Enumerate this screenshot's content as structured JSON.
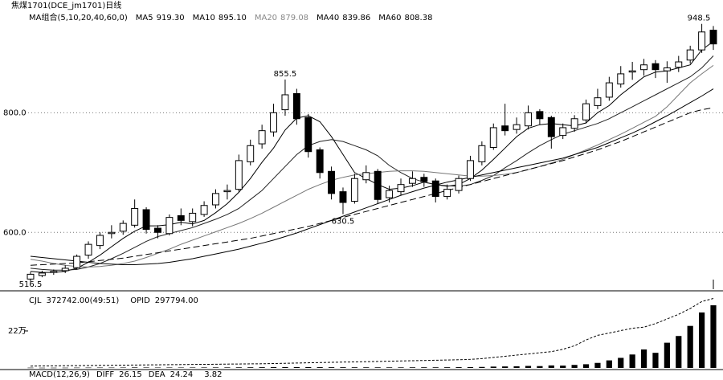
{
  "title": "焦煤1701(DCE_jm1701)日线",
  "chart_data": [
    {
      "type": "candlestick",
      "legend_title": "MA组合(5,10,20,40,60,0)",
      "ylim": [
        505,
        975
      ],
      "yticks": [
        {
          "value": 800,
          "label": "800.0"
        },
        {
          "value": 600,
          "label": "600.0"
        }
      ],
      "grid": true,
      "up_color": "#ffffff",
      "down_color": "#000000",
      "open": [
        522,
        528,
        533,
        536,
        541,
        562,
        578,
        598,
        602,
        612,
        638,
        607,
        598,
        628,
        618,
        630,
        646,
        668,
        672,
        718,
        748,
        768,
        805,
        832,
        792,
        738,
        702,
        668,
        652,
        688,
        702,
        658,
        668,
        682,
        692,
        686,
        660,
        670,
        690,
        718,
        742,
        778,
        772,
        778,
        802,
        792,
        762,
        774,
        788,
        812,
        826,
        848,
        868,
        872,
        882,
        870,
        876,
        888,
        905,
        938
      ],
      "high": [
        534,
        536,
        538,
        545,
        563,
        585,
        600,
        612,
        620,
        655,
        642,
        612,
        630,
        640,
        640,
        652,
        672,
        680,
        730,
        755,
        780,
        815,
        855.5,
        840,
        798,
        742,
        710,
        675,
        698,
        712,
        706,
        678,
        690,
        702,
        698,
        690,
        680,
        695,
        728,
        752,
        782,
        815,
        792,
        812,
        806,
        795,
        782,
        796,
        822,
        840,
        860,
        878,
        885,
        890,
        888,
        886,
        895,
        912,
        948.5,
        945
      ],
      "low": [
        516.5,
        525,
        529,
        532,
        538,
        556,
        572,
        590,
        596,
        608,
        598,
        590,
        595,
        612,
        610,
        626,
        640,
        655,
        668,
        712,
        740,
        760,
        795,
        780,
        725,
        690,
        655,
        630.5,
        648,
        682,
        648,
        650,
        662,
        676,
        676,
        650,
        655,
        665,
        686,
        712,
        738,
        762,
        765,
        772,
        780,
        740,
        756,
        768,
        782,
        806,
        820,
        842,
        855,
        862,
        858,
        850,
        868,
        882,
        900,
        905
      ],
      "close": [
        530,
        532,
        535,
        540,
        560,
        580,
        595,
        600,
        615,
        640,
        605,
        600,
        625,
        620,
        632,
        645,
        665,
        670,
        720,
        745,
        770,
        800,
        830,
        790,
        735,
        700,
        665,
        650,
        690,
        700,
        655,
        670,
        680,
        690,
        685,
        660,
        672,
        690,
        720,
        745,
        775,
        770,
        780,
        800,
        790,
        760,
        775,
        790,
        815,
        825,
        850,
        865,
        870,
        880,
        872,
        875,
        885,
        905,
        935,
        915
      ],
      "annotations": [
        855.5,
        630.5,
        948.5,
        516.5
      ],
      "series": [
        {
          "name": "MA5",
          "color": "#000000",
          "legend_value": {
            "value": 919.3,
            "label": "919.30"
          },
          "values": [
            535,
            533,
            533,
            535,
            540,
            550,
            562,
            576,
            590,
            602,
            611,
            611,
            613,
            617,
            614,
            620,
            633,
            648,
            667,
            690,
            717,
            741,
            771,
            791,
            795,
            785,
            760,
            730,
            700,
            690,
            680,
            672,
            674,
            678,
            684,
            680,
            677,
            680,
            690,
            704,
            722,
            741,
            760,
            774,
            780,
            782,
            780,
            778,
            783,
            800,
            812,
            830,
            845,
            860,
            868,
            870,
            875,
            880,
            905,
            919.3
          ]
        },
        {
          "name": "MA10",
          "color": "#222222",
          "legend_value": {
            "value": 895.1,
            "label": "895.10"
          },
          "values": [
            540,
            538,
            537,
            537,
            538,
            542,
            548,
            556,
            565,
            575,
            585,
            593,
            598,
            603,
            608,
            615,
            622,
            630,
            640,
            655,
            670,
            690,
            710,
            730,
            745,
            752,
            755,
            752,
            745,
            738,
            728,
            712,
            700,
            690,
            684,
            680,
            678,
            677,
            680,
            687,
            695,
            708,
            720,
            733,
            745,
            755,
            764,
            770,
            776,
            782,
            790,
            800,
            810,
            820,
            830,
            840,
            850,
            860,
            875,
            895.1
          ]
        },
        {
          "name": "MA20",
          "color": "#777777",
          "legend_value": {
            "value": 879.08,
            "label": "879.08"
          },
          "values": [
            555,
            552,
            548,
            545,
            543,
            542,
            543,
            545,
            548,
            552,
            558,
            565,
            572,
            580,
            587,
            594,
            601,
            608,
            615,
            623,
            632,
            642,
            652,
            662,
            672,
            680,
            687,
            692,
            696,
            698,
            700,
            702,
            703,
            703,
            702,
            700,
            698,
            696,
            694,
            694,
            695,
            697,
            700,
            705,
            710,
            716,
            722,
            730,
            738,
            746,
            755,
            764,
            774,
            784,
            794,
            810,
            830,
            850,
            865,
            879.08
          ]
        },
        {
          "name": "MA40",
          "color": "#000000",
          "legend_value": {
            "value": 839.86,
            "label": "839.86"
          },
          "values": [
            560,
            558,
            556,
            554,
            552,
            550,
            548,
            547,
            546,
            546,
            547,
            548,
            550,
            553,
            556,
            560,
            564,
            568,
            572,
            577,
            582,
            587,
            593,
            599,
            606,
            613,
            620,
            627,
            634,
            641,
            648,
            655,
            662,
            668,
            674,
            679,
            684,
            688,
            692,
            696,
            700,
            704,
            708,
            712,
            716,
            720,
            724,
            730,
            736,
            742,
            750,
            758,
            766,
            775,
            785,
            795,
            806,
            817,
            828,
            839.86
          ]
        },
        {
          "name": "MA60",
          "color": "#000000",
          "line_style": "dashed",
          "legend_value": {
            "value": 808.38,
            "label": "808.38"
          },
          "values": [
            545,
            546,
            547,
            548,
            549,
            551,
            553,
            555,
            557,
            560,
            563,
            566,
            569,
            572,
            575,
            578,
            581,
            584,
            587,
            590,
            594,
            598,
            602,
            606,
            610,
            615,
            620,
            625,
            630,
            635,
            640,
            645,
            650,
            655,
            660,
            665,
            670,
            675,
            680,
            685,
            690,
            695,
            700,
            705,
            710,
            715,
            720,
            726,
            732,
            738,
            745,
            752,
            760,
            768,
            776,
            784,
            792,
            800,
            805,
            808.38
          ]
        }
      ]
    },
    {
      "type": "bar",
      "ylim": [
        0,
        430000
      ],
      "yticks": [
        {
          "value": 220000,
          "label": "22万"
        }
      ],
      "y2lim": [
        0,
        310000
      ],
      "series": [
        {
          "name": "CJL",
          "color": "#000000",
          "legend_label": "372742.00(49:51)",
          "values": [
            1500,
            1200,
            1300,
            1400,
            1800,
            2000,
            2200,
            2100,
            2400,
            3000,
            2600,
            2300,
            2500,
            2400,
            2600,
            2800,
            3000,
            3100,
            3500,
            3800,
            4200,
            4600,
            5000,
            5200,
            4800,
            4500,
            4200,
            4000,
            3800,
            3600,
            3500,
            3400,
            3300,
            3600,
            3800,
            3700,
            4000,
            4500,
            5000,
            6000,
            8000,
            9000,
            10000,
            12000,
            11000,
            15000,
            14000,
            18000,
            22000,
            30000,
            45000,
            60000,
            80000,
            110000,
            90000,
            150000,
            190000,
            250000,
            330000,
            372742
          ]
        },
        {
          "name": "OPID",
          "color": "#000000",
          "axis": "y2",
          "legend_label": "297794.00",
          "values": [
            8000,
            8500,
            9000,
            9500,
            10000,
            10500,
            11000,
            11500,
            12000,
            12500,
            13000,
            13500,
            14000,
            14500,
            15000,
            15500,
            16000,
            16500,
            17000,
            17500,
            18000,
            19000,
            20000,
            21000,
            22000,
            23000,
            24000,
            25000,
            26000,
            27000,
            28000,
            29000,
            30000,
            31000,
            32000,
            33000,
            34000,
            35000,
            37000,
            40000,
            45000,
            50000,
            55000,
            60000,
            65000,
            70000,
            80000,
            95000,
            120000,
            140000,
            150000,
            160000,
            170000,
            175000,
            190000,
            210000,
            230000,
            255000,
            285000,
            297794
          ]
        }
      ]
    },
    {
      "type": "macd",
      "title": "MACD(12,26,9)",
      "series": [
        {
          "name": "DIFF",
          "value": 26.15
        },
        {
          "name": "DEA",
          "value": 24.24
        },
        {
          "value": 3.82
        }
      ]
    }
  ]
}
